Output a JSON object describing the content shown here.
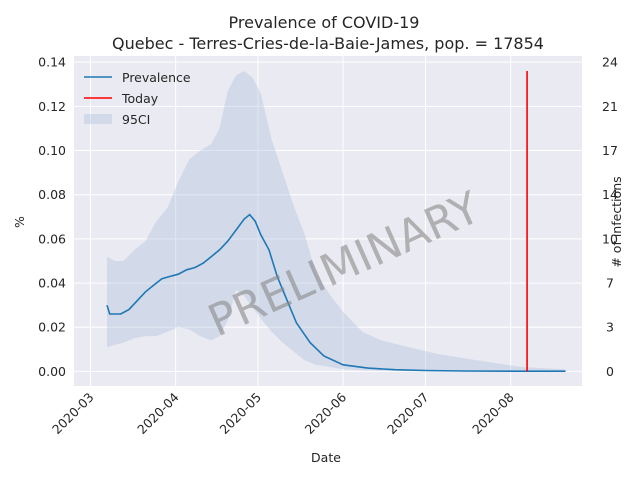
{
  "chart_data": {
    "type": "line",
    "title": "Prevalence of COVID-19",
    "subtitle": "Quebec - Terres-Cries-de-la-Baie-James, pop. = 17854",
    "xlabel": "Date",
    "ylabel": "%",
    "y2label": "# of infections",
    "xlim": [
      "2020-02-24",
      "2020-08-27"
    ],
    "ylim": [
      -0.0066,
      0.1428
    ],
    "grid": true,
    "legend_position": "top-left",
    "x_ticks": [
      "2020-03-01",
      "2020-04-01",
      "2020-05-01",
      "2020-06-01",
      "2020-07-01",
      "2020-08-01"
    ],
    "x_tick_labels": [
      "2020-03",
      "2020-04",
      "2020-05",
      "2020-06",
      "2020-07",
      "2020-08"
    ],
    "y_ticks": [
      0.0,
      0.02,
      0.04,
      0.06,
      0.08,
      0.1,
      0.12,
      0.14
    ],
    "y_tick_labels": [
      "0.00",
      "0.02",
      "0.04",
      "0.06",
      "0.08",
      "0.10",
      "0.12",
      "0.14"
    ],
    "y2_ticks": [
      0,
      3,
      7,
      10,
      14,
      17,
      21,
      24
    ],
    "y2_tick_labels": [
      "0",
      "3",
      "7",
      "10",
      "14",
      "17",
      "21",
      "24"
    ],
    "series": [
      {
        "name": "Prevalence",
        "color": "#1f77b4",
        "x": [
          "2020-03-07",
          "2020-03-08",
          "2020-03-10",
          "2020-03-12",
          "2020-03-15",
          "2020-03-18",
          "2020-03-21",
          "2020-03-24",
          "2020-03-27",
          "2020-03-30",
          "2020-04-02",
          "2020-04-05",
          "2020-04-08",
          "2020-04-11",
          "2020-04-14",
          "2020-04-17",
          "2020-04-20",
          "2020-04-23",
          "2020-04-26",
          "2020-04-28",
          "2020-04-30",
          "2020-05-02",
          "2020-05-05",
          "2020-05-08",
          "2020-05-11",
          "2020-05-15",
          "2020-05-20",
          "2020-05-25",
          "2020-06-01",
          "2020-06-10",
          "2020-06-20",
          "2020-07-01",
          "2020-07-15",
          "2020-08-01",
          "2020-08-21"
        ],
        "y": [
          0.03,
          0.026,
          0.026,
          0.026,
          0.028,
          0.032,
          0.036,
          0.039,
          0.042,
          0.043,
          0.044,
          0.046,
          0.047,
          0.049,
          0.052,
          0.055,
          0.059,
          0.064,
          0.069,
          0.071,
          0.068,
          0.062,
          0.055,
          0.043,
          0.034,
          0.022,
          0.013,
          0.007,
          0.003,
          0.0015,
          0.0008,
          0.0004,
          0.0002,
          0.0001,
          0.0001
        ]
      },
      {
        "name": "Today",
        "color": "#ff0000",
        "x": [
          "2020-08-07",
          "2020-08-07"
        ],
        "y": [
          0.0,
          0.136
        ]
      },
      {
        "name": "95CI",
        "color": "#b0c4de",
        "x": [
          "2020-03-07",
          "2020-03-10",
          "2020-03-13",
          "2020-03-17",
          "2020-03-21",
          "2020-03-25",
          "2020-03-29",
          "2020-04-02",
          "2020-04-06",
          "2020-04-10",
          "2020-04-14",
          "2020-04-17",
          "2020-04-20",
          "2020-04-23",
          "2020-04-26",
          "2020-04-29",
          "2020-05-02",
          "2020-05-06",
          "2020-05-10",
          "2020-05-14",
          "2020-05-18",
          "2020-05-22",
          "2020-05-27",
          "2020-06-01",
          "2020-06-08",
          "2020-06-15",
          "2020-06-25",
          "2020-07-05",
          "2020-07-20",
          "2020-08-05",
          "2020-08-21"
        ],
        "upper": [
          0.052,
          0.05,
          0.05,
          0.055,
          0.059,
          0.068,
          0.074,
          0.086,
          0.096,
          0.1,
          0.103,
          0.11,
          0.127,
          0.134,
          0.136,
          0.133,
          0.126,
          0.105,
          0.09,
          0.075,
          0.062,
          0.045,
          0.035,
          0.027,
          0.018,
          0.014,
          0.011,
          0.008,
          0.005,
          0.002,
          0.001
        ],
        "lower": [
          0.011,
          0.012,
          0.013,
          0.015,
          0.016,
          0.016,
          0.018,
          0.02,
          0.019,
          0.016,
          0.014,
          0.016,
          0.023,
          0.037,
          0.034,
          0.029,
          0.024,
          0.018,
          0.013,
          0.009,
          0.005,
          0.003,
          0.002,
          0.001,
          0.0005,
          0.0003,
          0.0001,
          0.0,
          0.0,
          0.0,
          0.0
        ]
      }
    ],
    "watermark": "PRELIMINARY"
  }
}
